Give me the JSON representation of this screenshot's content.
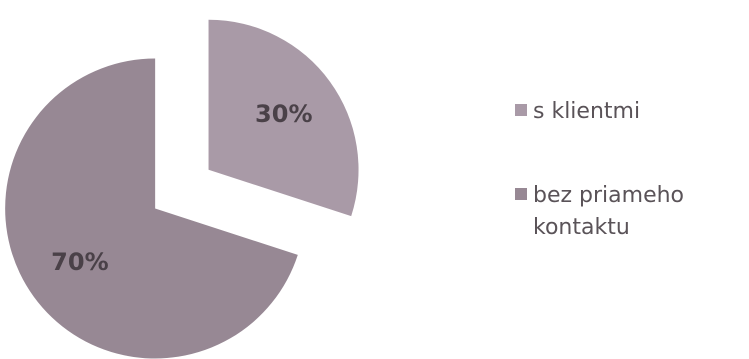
{
  "chart_data": {
    "type": "pie",
    "categories": [
      "s klientmi",
      "bez priameho kontaktu"
    ],
    "values": [
      30,
      70
    ],
    "data_labels": [
      "30%",
      "70%"
    ],
    "colors": [
      "#a99aa7",
      "#978894"
    ],
    "exploded": true,
    "legend_position": "right"
  },
  "legend": {
    "items": [
      {
        "label": "s klientmi",
        "color": "#a99aa7"
      },
      {
        "label": "bez priameho kontaktu",
        "color": "#978894"
      }
    ]
  }
}
